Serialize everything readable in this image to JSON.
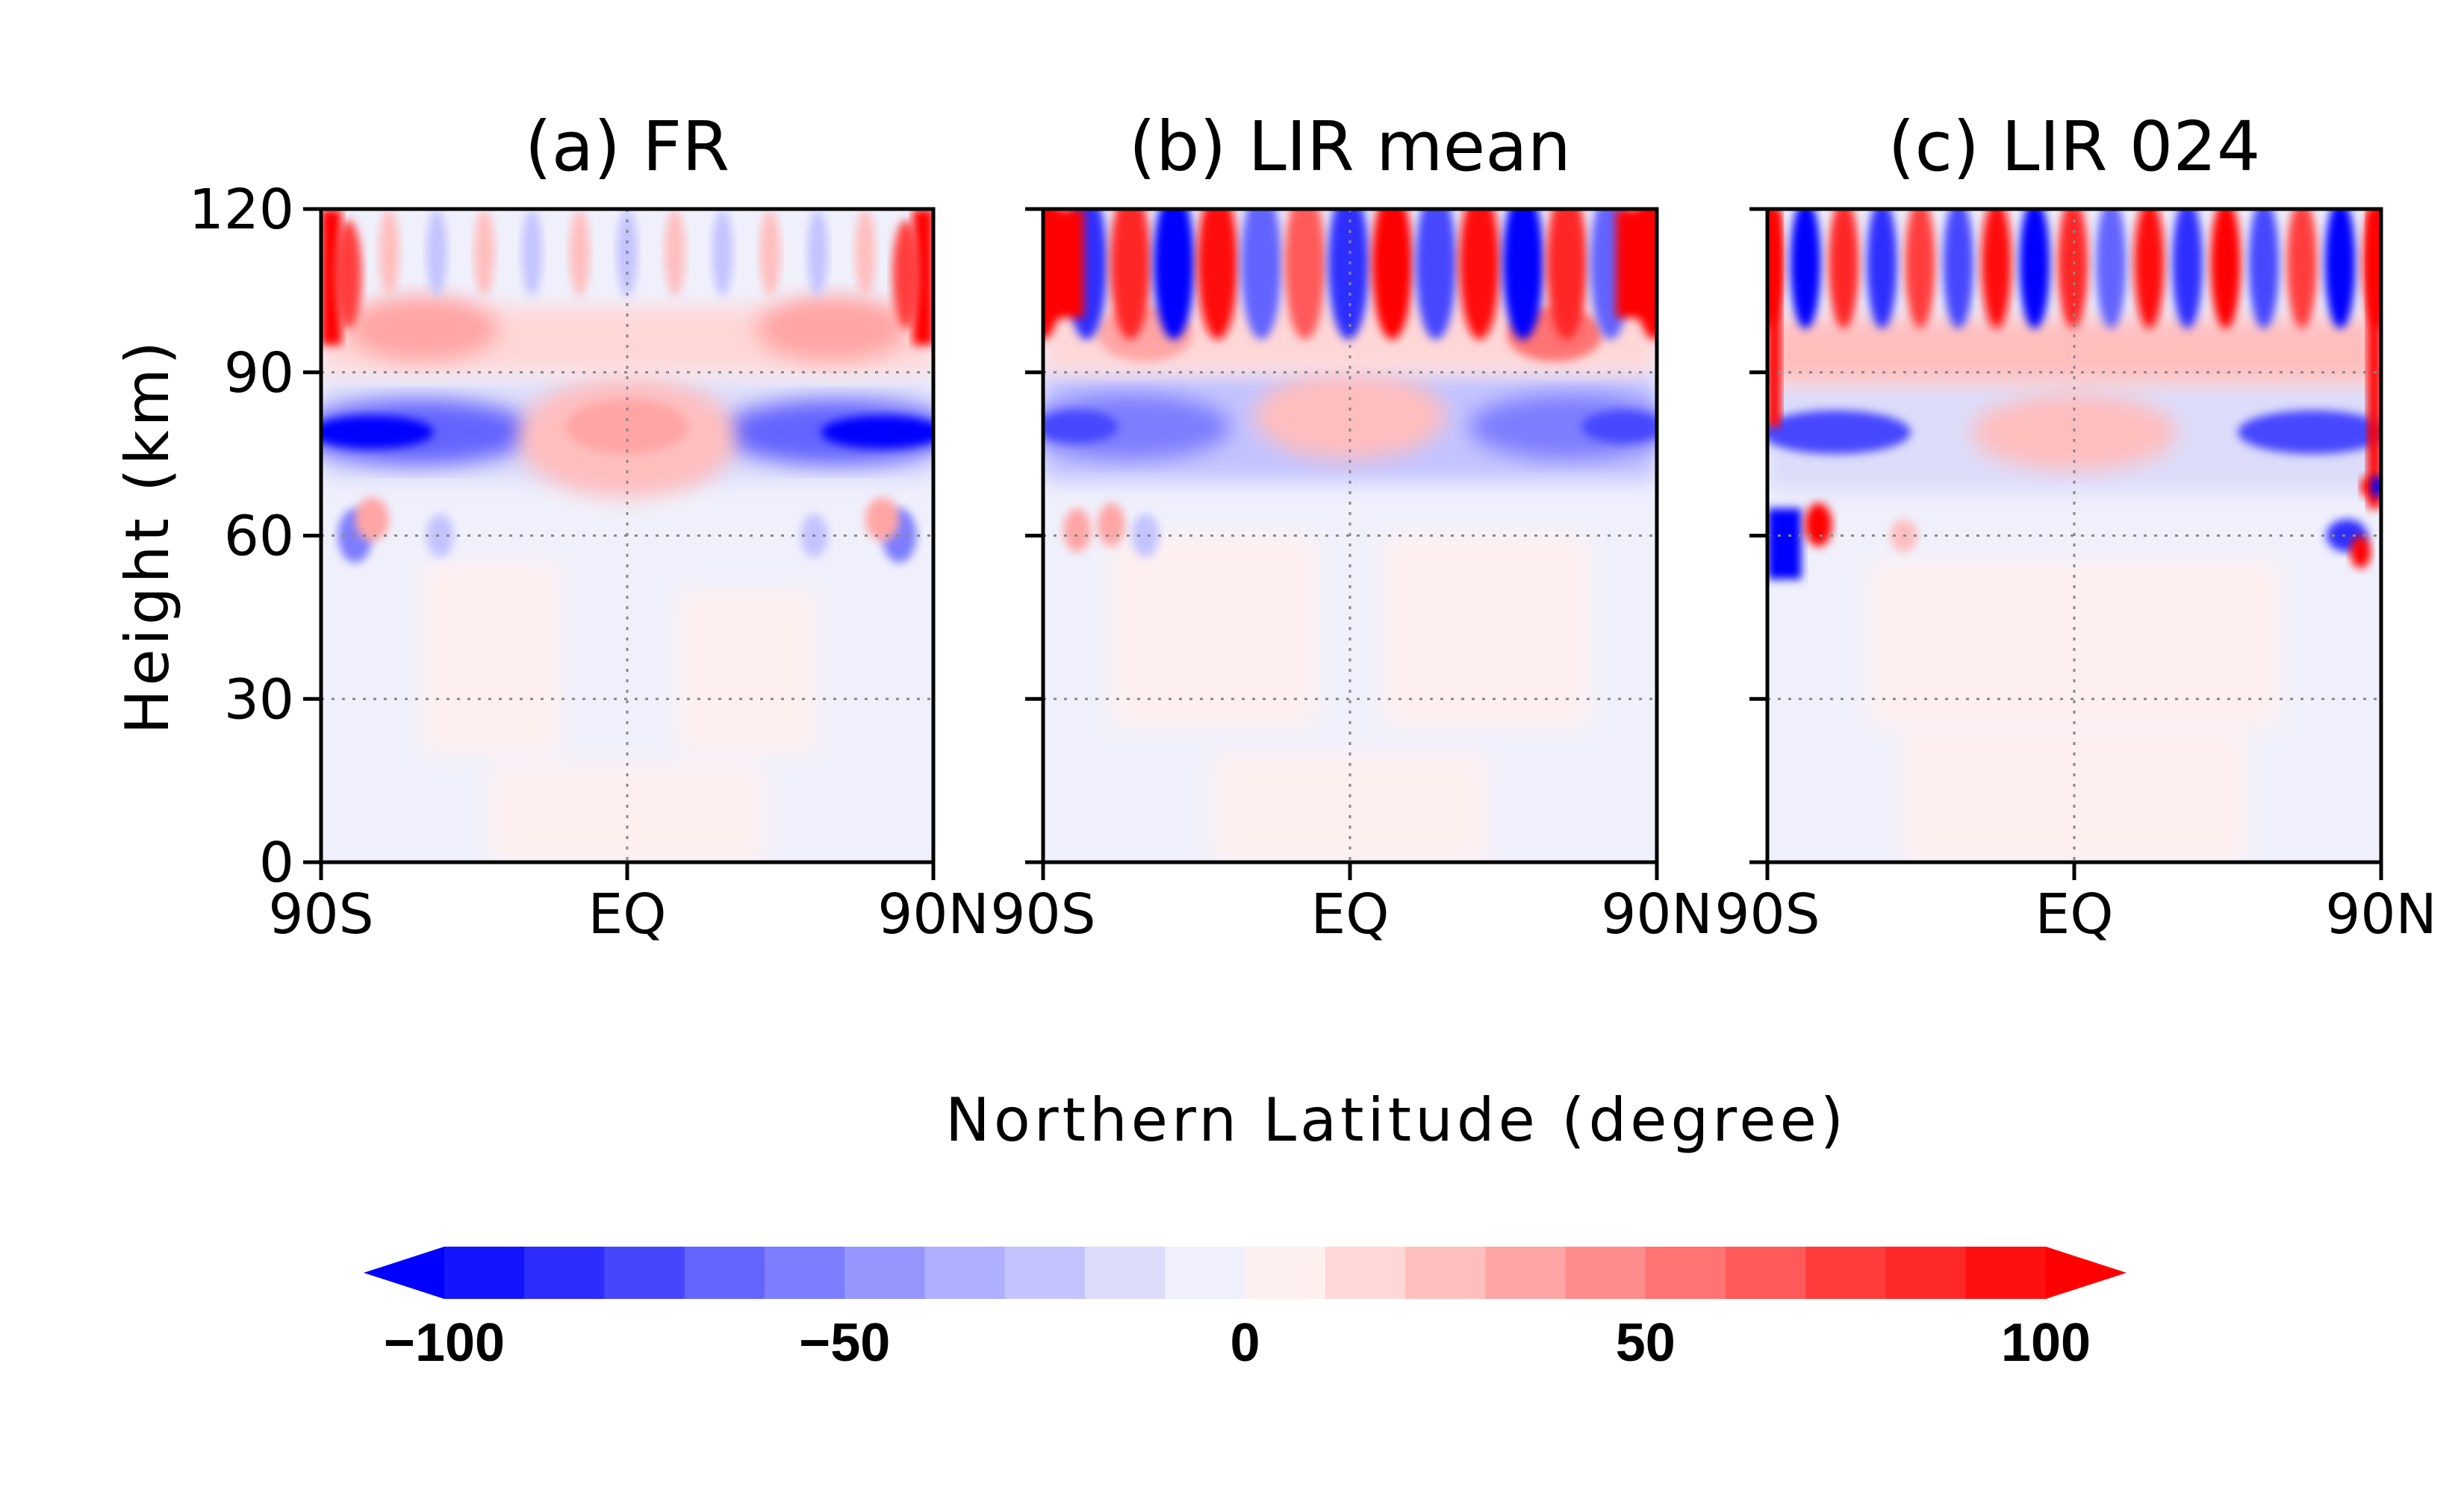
{
  "figure": {
    "ylabel": "Height (km)",
    "xlabel": "Northern Latitude (degree)"
  },
  "chart_data": [
    {
      "type": "heatmap",
      "title": "(a) FR",
      "xlabel": "Northern Latitude (degree)",
      "ylabel": "Height (km)",
      "x_ticks": [
        "90S",
        "EQ",
        "90N"
      ],
      "y_ticks": [
        "0",
        "30",
        "60",
        "90",
        "120"
      ],
      "xlim": [
        -90,
        90
      ],
      "ylim": [
        0,
        120
      ],
      "grid": "dotted at EQ and 30, 60, 90 km",
      "features": [
        {
          "lat": [
            -90,
            -20
          ],
          "height": [
            72,
            86
          ],
          "value": -100
        },
        {
          "lat": [
            20,
            90
          ],
          "height": [
            72,
            86
          ],
          "value": -100
        },
        {
          "lat": [
            -25,
            25
          ],
          "height": [
            65,
            85
          ],
          "value": 35
        },
        {
          "lat": [
            -90,
            -83
          ],
          "height": [
            95,
            120
          ],
          "value": 100
        },
        {
          "lat": [
            83,
            90
          ],
          "height": [
            95,
            120
          ],
          "value": 100
        },
        {
          "lat": [
            -90,
            90
          ],
          "height": [
            0,
            60
          ],
          "value": 5
        }
      ]
    },
    {
      "type": "heatmap",
      "title": "(b) LIR mean",
      "xlabel": "Northern Latitude (degree)",
      "ylabel": "Height (km)",
      "x_ticks": [
        "90S",
        "EQ",
        "90N"
      ],
      "y_ticks": [
        "0",
        "30",
        "60",
        "90",
        "120"
      ],
      "xlim": [
        -90,
        90
      ],
      "ylim": [
        0,
        120
      ],
      "grid": "dotted at EQ and 30, 60, 90 km",
      "features": [
        {
          "lat": [
            -90,
            -25
          ],
          "height": [
            72,
            88
          ],
          "value": -70
        },
        {
          "lat": [
            25,
            90
          ],
          "height": [
            72,
            88
          ],
          "value": -70
        },
        {
          "lat": [
            -25,
            25
          ],
          "height": [
            70,
            85
          ],
          "value": 30
        },
        {
          "lat": [
            -90,
            90
          ],
          "height": [
            95,
            120
          ],
          "value": "alternating +/-100"
        },
        {
          "lat": [
            -90,
            90
          ],
          "height": [
            0,
            60
          ],
          "value": 5
        }
      ]
    },
    {
      "type": "heatmap",
      "title": "(c) LIR 024",
      "xlabel": "Northern Latitude (degree)",
      "ylabel": "Height (km)",
      "x_ticks": [
        "90S",
        "EQ",
        "90N"
      ],
      "y_ticks": [
        "0",
        "30",
        "60",
        "90",
        "120"
      ],
      "xlim": [
        -90,
        90
      ],
      "ylim": [
        0,
        120
      ],
      "grid": "dotted at EQ and 30, 60, 90 km",
      "features": [
        {
          "lat": [
            -90,
            -20
          ],
          "height": [
            72,
            86
          ],
          "value": -90
        },
        {
          "lat": [
            20,
            90
          ],
          "height": [
            72,
            86
          ],
          "value": -90
        },
        {
          "lat": [
            -90,
            -75
          ],
          "height": [
            50,
            65
          ],
          "value": -100
        },
        {
          "lat": [
            -90,
            90
          ],
          "height": [
            90,
            120
          ],
          "value": "alternating +/-100"
        },
        {
          "lat": [
            -90,
            90
          ],
          "height": [
            0,
            60
          ],
          "value": 5
        }
      ]
    }
  ],
  "colorbar": {
    "min": -100,
    "max": 100,
    "step": 10,
    "ticks": [
      "−100",
      "−50",
      "0",
      "50",
      "100"
    ],
    "extend": "both",
    "colors": [
      "#1414ff",
      "#2d2dff",
      "#4646ff",
      "#6464ff",
      "#7d7dff",
      "#9696ff",
      "#afafff",
      "#c3c3ff",
      "#dcdcfa",
      "#f0f0fc",
      "#fff0f0",
      "#ffd7d7",
      "#ffbebe",
      "#ffa5a5",
      "#ff8c8c",
      "#ff7373",
      "#ff5a5a",
      "#ff3c3c",
      "#ff2828",
      "#ff0f0f"
    ],
    "low_color": "#0000ff",
    "high_color": "#ff0000"
  }
}
